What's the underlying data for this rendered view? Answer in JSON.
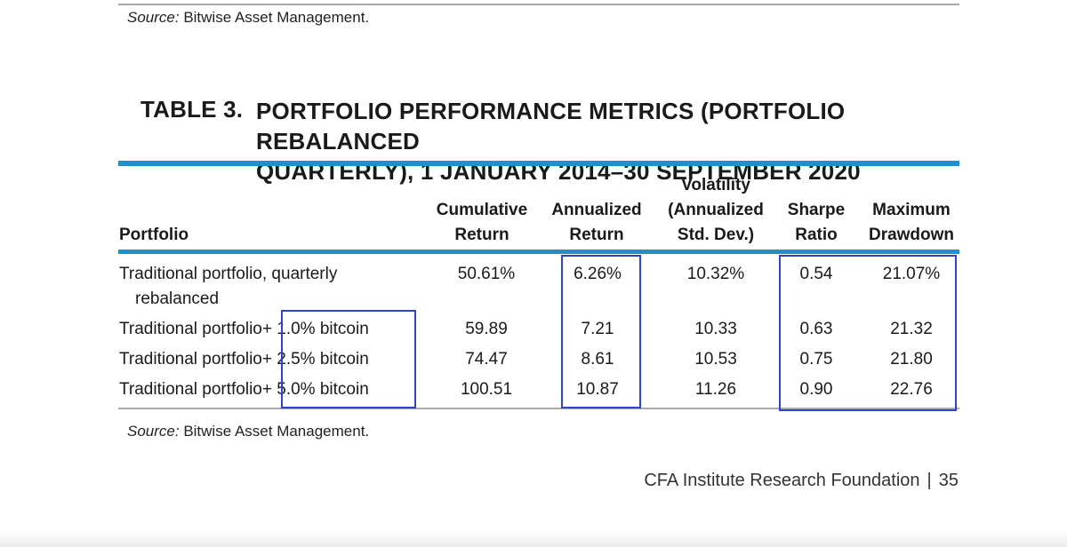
{
  "source_top": {
    "label": "Source:",
    "text": " Bitwise Asset Management."
  },
  "table": {
    "number": "TABLE 3.",
    "title_line1": "PORTFOLIO PERFORMANCE METRICS (PORTFOLIO REBALANCED",
    "title_line2": "QUARTERLY), 1 JANUARY 2014–30 SEPTEMBER 2020",
    "headers": {
      "portfolio": "Portfolio",
      "cumulative": [
        "Cumulative",
        "Return"
      ],
      "annualized": [
        "Annualized",
        "Return"
      ],
      "volatility": [
        "Volatility",
        "(Annualized",
        "Std. Dev.)"
      ],
      "sharpe": [
        "Sharpe",
        "Ratio"
      ],
      "drawdown": [
        "Maximum",
        "Drawdown"
      ]
    },
    "rows": [
      {
        "portfolio": [
          "Traditional portfolio, quarterly",
          "rebalanced"
        ],
        "cumulative": "50.61%",
        "annualized": "6.26%",
        "volatility": "10.32%",
        "sharpe": "0.54",
        "drawdown": "21.07%"
      },
      {
        "portfolio": [
          "Traditional portfolio",
          "+ 1.0% bitcoin"
        ],
        "cumulative": "59.89",
        "annualized": "7.21",
        "volatility": "10.33",
        "sharpe": "0.63",
        "drawdown": "21.32"
      },
      {
        "portfolio": [
          "Traditional portfolio",
          "+ 2.5% bitcoin"
        ],
        "cumulative": "74.47",
        "annualized": "8.61",
        "volatility": "10.53",
        "sharpe": "0.75",
        "drawdown": "21.80"
      },
      {
        "portfolio": [
          "Traditional portfolio",
          "+ 5.0% bitcoin"
        ],
        "cumulative": "100.51",
        "annualized": "10.87",
        "volatility": "11.26",
        "sharpe": "0.90",
        "drawdown": "22.76"
      }
    ]
  },
  "source_bottom": {
    "label": "Source:",
    "text": " Bitwise Asset Management."
  },
  "footer": {
    "publisher": "CFA Institute Research Foundation",
    "separator": "|",
    "page": "35"
  },
  "colors": {
    "rule_blue": "#1f8fd0",
    "highlight_box": "#2b45c8"
  }
}
